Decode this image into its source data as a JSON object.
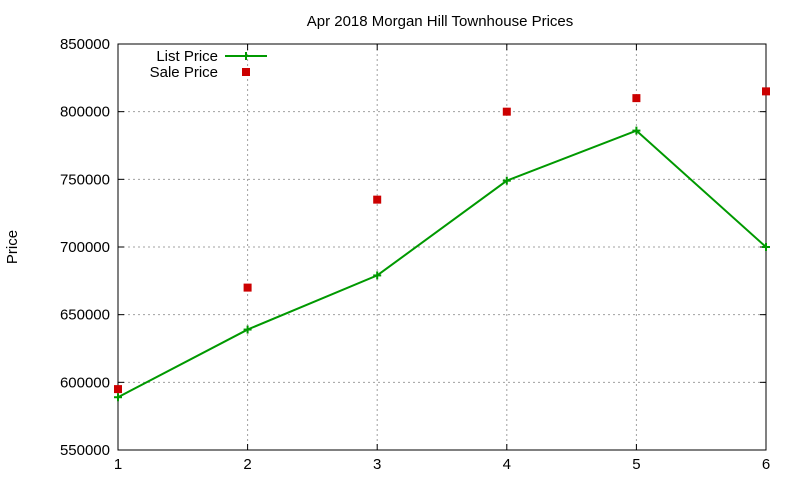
{
  "chart_data": {
    "type": "line",
    "title": "Apr 2018 Morgan Hill Townhouse Prices",
    "xlabel": "",
    "ylabel": "Price",
    "xlim": [
      1,
      6
    ],
    "ylim": [
      550000,
      850000
    ],
    "xticks": [
      1,
      2,
      3,
      4,
      5,
      6
    ],
    "xtick_labels": [
      "1",
      "2",
      "3",
      "4",
      "5",
      "6"
    ],
    "yticks": [
      550000,
      600000,
      650000,
      700000,
      750000,
      800000,
      850000
    ],
    "ytick_labels": [
      "550000",
      "600000",
      "650000",
      "700000",
      "750000",
      "800000",
      "850000"
    ],
    "grid": true,
    "legend_position": "top-left",
    "series": [
      {
        "name": "List Price",
        "style": "line-with-plus-markers",
        "color": "#009900",
        "x": [
          1,
          2,
          3,
          4,
          5,
          6
        ],
        "values": [
          589000,
          639000,
          679000,
          749000,
          786000,
          700000
        ]
      },
      {
        "name": "Sale Price",
        "style": "square-markers",
        "color": "#cc0000",
        "x": [
          1,
          2,
          3,
          4,
          5,
          6
        ],
        "values": [
          595000,
          670000,
          735000,
          800000,
          810000,
          815000
        ]
      }
    ]
  }
}
